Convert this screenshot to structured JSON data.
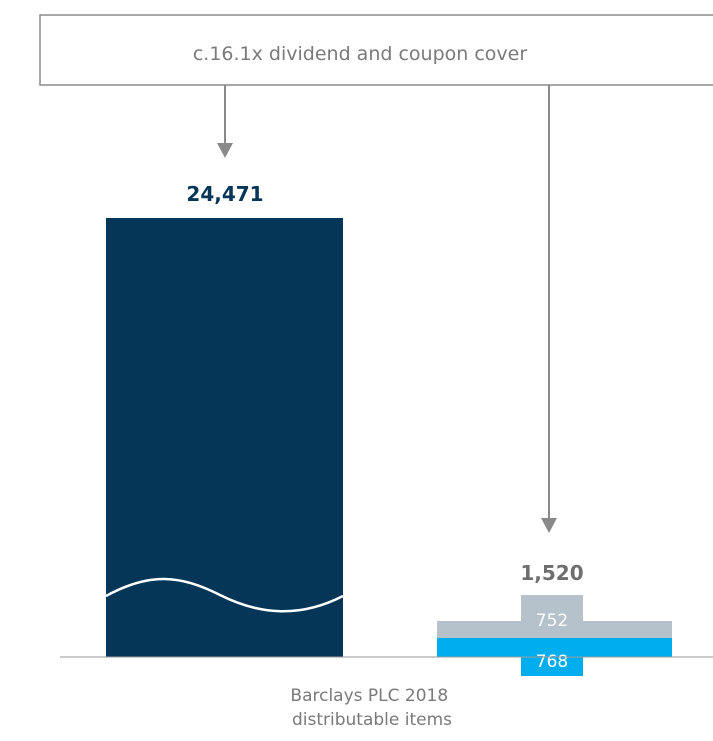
{
  "chart_data": {
    "type": "bar",
    "annotation": "c.16.1x dividend and coupon cover",
    "axis_break_on_first_bar": true,
    "bars": [
      {
        "total": 24471,
        "total_label": "24,471",
        "color": "#053657",
        "segments": [],
        "category": ""
      },
      {
        "total": 1520,
        "total_label": "1,520",
        "segments": [
          {
            "value": 768,
            "label": "768",
            "color": "#00aeef"
          },
          {
            "value": 752,
            "label": "752",
            "color": "#b5c2cb"
          }
        ],
        "category": [
          "Barclays PLC 2018",
          "distributable items"
        ]
      }
    ],
    "colors": {
      "annotation_border": "#8a8a8a",
      "arrow": "#8a8a8a",
      "first_total_text": "#053657",
      "second_total_text": "#6e6e6e",
      "baseline": "#9a9a9a",
      "break_line": "#ffffff"
    }
  }
}
